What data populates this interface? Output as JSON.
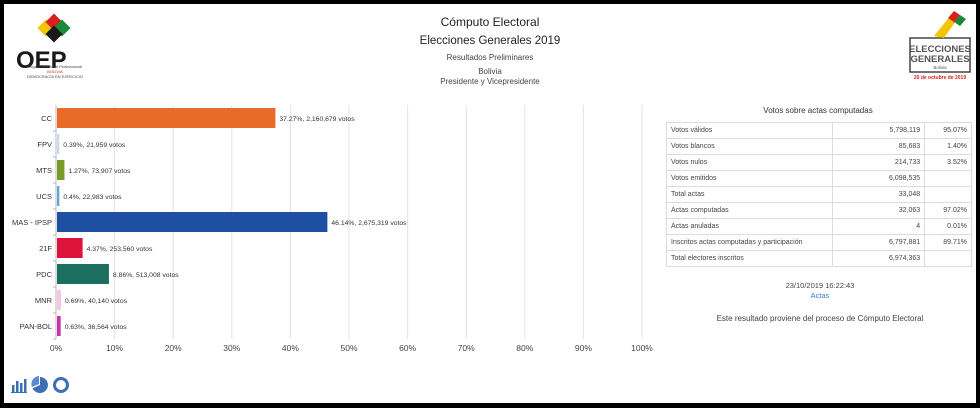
{
  "header": {
    "title": "Cómputo Electoral",
    "subtitle": "Elecciones Generales 2019",
    "status": "Resultados Preliminares",
    "country": "Bolivia",
    "office": "Presidente y Vicepresidente"
  },
  "logos": {
    "left_text": "OEP",
    "left_sub1": "Órgano Electoral Plurinacional",
    "left_sub2": "BOLIVIA",
    "left_sub3": "DEMOCRACIA EN EJERCICIO",
    "right_text1": "ELECCIONES",
    "right_text2": "GENERALES",
    "right_sub": "Bolivia",
    "right_date": "20 de octubre de 2019"
  },
  "chart_data": {
    "type": "bar",
    "orientation": "horizontal",
    "categories": [
      "CC",
      "FPV",
      "MTS",
      "UCS",
      "MAS - IPSP",
      "21F",
      "PDC",
      "MNR",
      "PAN-BOL"
    ],
    "values": [
      37.27,
      0.39,
      1.27,
      0.4,
      46.14,
      4.37,
      8.86,
      0.69,
      0.63
    ],
    "labels": [
      "37.27%,  2,160,679 votos",
      "0.39%,  21,959 votos",
      "1.27%,  73,907 votos",
      "0.4%,  22,983 votos",
      "46.14%,  2,675,319 votos",
      "4.37%,  253,560 votos",
      "8.86%,  513,008 votos",
      "0.69%,  40,140 votos",
      "0.63%,  36,564 votos"
    ],
    "colors": [
      "#ea6b28",
      "#c9d9ef",
      "#7a9a2b",
      "#5fa8d8",
      "#1f4fa3",
      "#dc143c",
      "#1b6e60",
      "#f4c6e0",
      "#cc33aa"
    ],
    "xticks": [
      "0%",
      "10%",
      "20%",
      "30%",
      "40%",
      "50%",
      "60%",
      "70%",
      "80%",
      "90%",
      "100%"
    ],
    "xlim": [
      0,
      100
    ],
    "grid": true
  },
  "table": {
    "title": "Votos sobre actas computadas",
    "rows": [
      {
        "label": "Votos válidos",
        "value": "5,798,119",
        "pct": "95.07%"
      },
      {
        "label": "Votos blancos",
        "value": "85,683",
        "pct": "1.40%"
      },
      {
        "label": "Votos nulos",
        "value": "214,733",
        "pct": "3.52%"
      },
      {
        "label": "Votos emitidos",
        "value": "6,098,535",
        "pct": ""
      },
      {
        "label": "Total actas",
        "value": "33,048",
        "pct": ""
      },
      {
        "label": "Actas computadas",
        "value": "32,063",
        "pct": "97.02%"
      },
      {
        "label": "Actas anuladas",
        "value": "4",
        "pct": "0.01%"
      },
      {
        "label": "Inscritos actas computadas y participación",
        "value": "6,797,881",
        "pct": "89.71%"
      },
      {
        "label": "Total electores inscritos",
        "value": "6,974,363",
        "pct": ""
      }
    ]
  },
  "footer": {
    "timestamp": "23/10/2019 16:22:43",
    "link": "Actas",
    "note": "Este resultado proviene del proceso de Cómputo Electoral"
  },
  "icons": [
    "bar-chart-icon",
    "pie-chart-icon",
    "donut-chart-icon"
  ]
}
